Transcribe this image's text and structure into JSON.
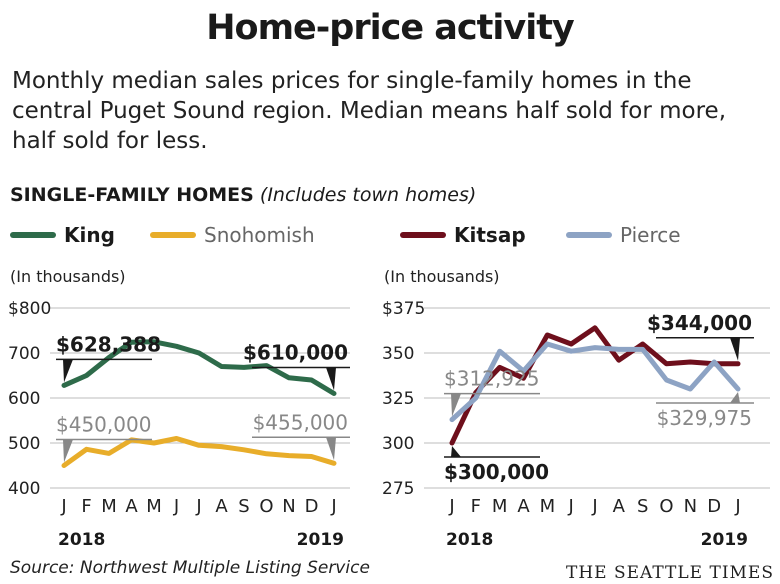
{
  "header": {
    "title": "Home-price activity",
    "description": "Monthly median sales prices for single-family homes in the central Puget Sound region. Median means half sold for more, half sold for less."
  },
  "section": {
    "heading": "SINGLE-FAMILY HOMES",
    "subheading": "(Includes town homes)"
  },
  "legend": [
    {
      "name": "King",
      "color": "#2e6b4a"
    },
    {
      "name": "Snohomish",
      "color": "#e8ad2a"
    },
    {
      "name": "Kitsap",
      "color": "#6e0f1c"
    },
    {
      "name": "Pierce",
      "color": "#8da3c4"
    }
  ],
  "footer": {
    "source": "Source: Northwest Multiple Listing Service",
    "credit": "THE SEATTLE TIMES"
  },
  "chart_data": [
    {
      "type": "line",
      "units_note": "(In thousands)",
      "categories": [
        "J",
        "F",
        "M",
        "A",
        "M",
        "J",
        "J",
        "A",
        "S",
        "O",
        "N",
        "D",
        "J"
      ],
      "year_labels": [
        "2018",
        "2019"
      ],
      "ylim": [
        400,
        800
      ],
      "yticks": [
        400,
        500,
        600,
        700,
        800
      ],
      "ytick_labels": [
        "400",
        "500",
        "600",
        "700",
        "$800"
      ],
      "series": [
        {
          "name": "King",
          "color": "#2e6b4a",
          "values": [
            628,
            650,
            690,
            724,
            725,
            715,
            700,
            670,
            668,
            672,
            645,
            640,
            610
          ]
        },
        {
          "name": "Snohomish",
          "color": "#e8ad2a",
          "values": [
            450,
            486,
            477,
            507,
            500,
            510,
            495,
            492,
            485,
            476,
            472,
            470,
            455
          ]
        }
      ],
      "annotations": [
        {
          "text": "$628,388",
          "series": "King",
          "index": 0,
          "color": "#1a1a1a",
          "bold": true,
          "pos": "above"
        },
        {
          "text": "$610,000",
          "series": "King",
          "index": 12,
          "color": "#1a1a1a",
          "bold": true,
          "pos": "above"
        },
        {
          "text": "$450,000",
          "series": "Snohomish",
          "index": 0,
          "color": "#888888",
          "bold": false,
          "pos": "above"
        },
        {
          "text": "$455,000",
          "series": "Snohomish",
          "index": 12,
          "color": "#888888",
          "bold": false,
          "pos": "above"
        }
      ]
    },
    {
      "type": "line",
      "units_note": "(In thousands)",
      "categories": [
        "J",
        "F",
        "M",
        "A",
        "M",
        "J",
        "J",
        "A",
        "S",
        "O",
        "N",
        "D",
        "J"
      ],
      "year_labels": [
        "2018",
        "2019"
      ],
      "ylim": [
        275,
        375
      ],
      "yticks": [
        275,
        300,
        325,
        350,
        375
      ],
      "ytick_labels": [
        "275",
        "300",
        "325",
        "350",
        "$375"
      ],
      "series": [
        {
          "name": "Kitsap",
          "color": "#6e0f1c",
          "values": [
            300,
            328,
            342,
            336,
            360,
            355,
            364,
            346,
            355,
            344,
            345,
            344,
            344
          ]
        },
        {
          "name": "Pierce",
          "color": "#8da3c4",
          "values": [
            313,
            325,
            351,
            340,
            355,
            351,
            353,
            352,
            352,
            335,
            330,
            345,
            330
          ]
        }
      ],
      "annotations": [
        {
          "text": "$312,925",
          "series": "Pierce",
          "index": 0,
          "color": "#888888",
          "bold": false,
          "pos": "above"
        },
        {
          "text": "$300,000",
          "series": "Kitsap",
          "index": 0,
          "color": "#1a1a1a",
          "bold": true,
          "pos": "below"
        },
        {
          "text": "$344,000",
          "series": "Kitsap",
          "index": 12,
          "color": "#1a1a1a",
          "bold": true,
          "pos": "above"
        },
        {
          "text": "$329,975",
          "series": "Pierce",
          "index": 12,
          "color": "#888888",
          "bold": false,
          "pos": "below"
        }
      ]
    }
  ]
}
